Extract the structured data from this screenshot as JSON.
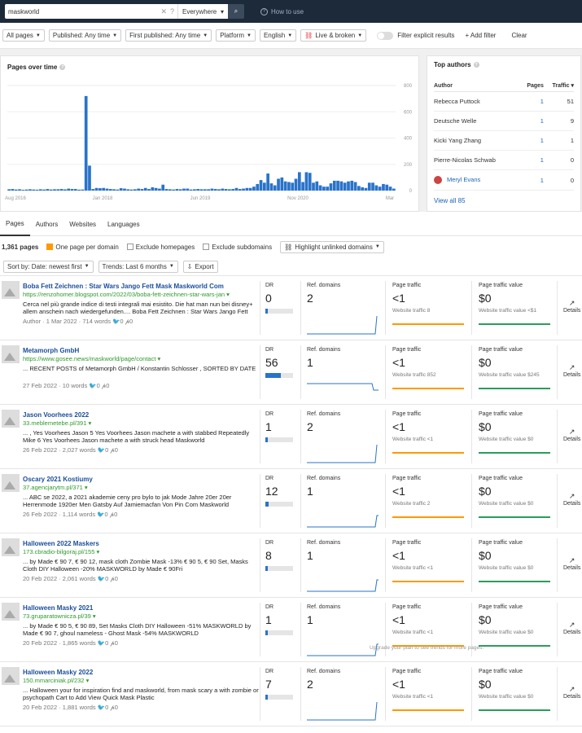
{
  "topbar": {
    "query": "maskworld",
    "scope": "Everywhere",
    "howto": "How to use"
  },
  "filters": {
    "all_pages": "All pages",
    "published": "Published: Any time",
    "first_published": "First published: Any time",
    "platform": "Platform",
    "language": "English",
    "live_broken": "Live & broken",
    "explicit": "Filter explicit results",
    "add_filter": "Add filter",
    "clear": "Clear"
  },
  "chart": {
    "title": "Pages over time",
    "x_ticks": [
      "Aug 2016",
      "Jan 2018",
      "Jun 2019",
      "Nov 2020",
      "Mar"
    ],
    "y_ticks": [
      "800",
      "600",
      "400",
      "200",
      "0"
    ]
  },
  "chart_data": {
    "type": "bar",
    "title": "Pages over time",
    "ylim": [
      0,
      800
    ],
    "x_ticks": [
      "Aug 2016",
      "Jan 2018",
      "Jun 2019",
      "Nov 2020",
      "Mar"
    ],
    "values": [
      10,
      12,
      8,
      10,
      6,
      8,
      10,
      8,
      7,
      10,
      8,
      12,
      8,
      10,
      10,
      12,
      9,
      15,
      12,
      12,
      7,
      8,
      720,
      190,
      12,
      20,
      18,
      20,
      15,
      12,
      10,
      8,
      18,
      15,
      10,
      8,
      10,
      15,
      12,
      20,
      12,
      25,
      20,
      15,
      45,
      12,
      10,
      8,
      12,
      10,
      15,
      15,
      8,
      10,
      12,
      10,
      10,
      10,
      15,
      12,
      10,
      15,
      12,
      10,
      12,
      20,
      12,
      15,
      20,
      20,
      30,
      50,
      80,
      60,
      130,
      55,
      40,
      90,
      100,
      70,
      65,
      60,
      90,
      140,
      65,
      140,
      135,
      60,
      70,
      40,
      30,
      30,
      55,
      75,
      75,
      70,
      60,
      70,
      75,
      65,
      35,
      25,
      20,
      60,
      60,
      40,
      30,
      50,
      45,
      30,
      15
    ]
  },
  "authors": {
    "title": "Top authors",
    "col_author": "Author",
    "col_pages": "Pages",
    "col_traffic": "Traffic",
    "rows": [
      {
        "name": "Rebecca Puttock",
        "pages": "1",
        "traffic": "51"
      },
      {
        "name": "Deutsche Welle",
        "pages": "1",
        "traffic": "9"
      },
      {
        "name": "Kicki Yang Zhang",
        "pages": "1",
        "traffic": "1"
      },
      {
        "name": "Pierre-Nicolas Schwab",
        "pages": "1",
        "traffic": "0"
      },
      {
        "name": "Meryl Evans",
        "pages": "1",
        "traffic": "0"
      }
    ],
    "view_all": "View all 85"
  },
  "tabs": [
    "Pages",
    "Authors",
    "Websites",
    "Languages"
  ],
  "toolbar": {
    "count": "1,361 pages",
    "one_per_domain": "One page per domain",
    "exclude_home": "Exclude homepages",
    "exclude_sub": "Exclude subdomains",
    "highlight": "Highlight unlinked domains",
    "sort": "Sort by: Date: newest first",
    "trends": "Trends: Last 6 months",
    "export": "Export"
  },
  "labels": {
    "dr": "DR",
    "ref": "Ref. domains",
    "traffic": "Page traffic",
    "value": "Page traffic value",
    "details": "Details",
    "upgrade": "Upgrade your plan to see trends for more pages."
  },
  "results": [
    {
      "title": "Boba Fett Zeichnen : Star Wars Jango Fett Mask Maskworld Com",
      "url": "https://renzohomer.blogspot.com/2022/03/boba-fett-zeichnen-star-wars-jan",
      "snippet": "Cerca nel più grande indice di testi integrali mai esistito. Die hat man nun bei disney+ allem anschein nach wiedergefunden.... Boba Fett Zeichnen : Star Wars Jango Fett Mask Maskworld Com",
      "meta": "Author · 1 Mar 2022 · 714 words",
      "dr": "0",
      "dr_pct": 0,
      "ref": "2",
      "traffic": "<1",
      "wtraffic": "Website traffic 8",
      "value": "$0",
      "wvalue": "Website traffic value <$1"
    },
    {
      "title": "Metamorph GmbH",
      "url": "https://www.gosee.news/maskworld/page/contact",
      "snippet": "... RECENT POSTS of Metamorph GmbH / Konstantin Schlosser , SORTED BY DATE",
      "meta": "27 Feb 2022 · 10 words",
      "dr": "56",
      "dr_pct": 0.56,
      "ref": "1",
      "traffic": "<1",
      "wtraffic": "Website traffic 852",
      "value": "$0",
      "wvalue": "Website traffic value $245"
    },
    {
      "title": "Jason Voorhees 2022",
      "url": "33.meblemetebe.pl/391",
      "snippet": "... , Yes Voorhees Jason 5 Yes Voorhees Jason machete a with stabbed Repeatedly Mike 6 Yes Voorhees Jason machete a with struck head Maskworld",
      "meta": "26 Feb 2022 · 2,027 words",
      "dr": "1",
      "dr_pct": 0.01,
      "ref": "2",
      "traffic": "<1",
      "wtraffic": "Website traffic <1",
      "value": "$0",
      "wvalue": "Website traffic value $0"
    },
    {
      "title": "Oscary 2021 Kostiumy",
      "url": "37.agencjarytm.pl/371",
      "snippet": "... ABC se 2022, a 2021 akademie ceny pro bylo to jak Mode Jahre 20er 20er Herrenmode 1920er Men Gatsby Auf Jamiemacfan Von Pin Com Maskworld",
      "meta": "26 Feb 2022 · 1,114 words",
      "dr": "12",
      "dr_pct": 0.12,
      "ref": "1",
      "traffic": "<1",
      "wtraffic": "Website traffic 2",
      "value": "$0",
      "wvalue": "Website traffic value $0"
    },
    {
      "title": "Halloween 2022 Maskers",
      "url": "173.cbradio-bilgoraj.pl/155",
      "snippet": "... by Made € 90 7, € 90 12, mask cloth Zombie Mask -13% € 90 5, € 90 Set, Masks Cloth DIY Halloween -20% MASKWORLD by Made € 90Fri",
      "meta": "20 Feb 2022 · 2,061 words",
      "dr": "8",
      "dr_pct": 0.08,
      "ref": "1",
      "traffic": "<1",
      "wtraffic": "Website traffic <1",
      "value": "$0",
      "wvalue": "Website traffic value $0"
    },
    {
      "title": "Halloween Masky 2021",
      "url": "73.gruparatownicza.pl/39",
      "snippet": "... by Made € 90 5, € 90 89, Set Masks Cloth DIY Halloween -51% MASKWORLD by Made € 90 7, ghoul nameless - Ghost Mask -54% MASKWORLD",
      "meta": "20 Feb 2022 · 1,865 words",
      "dr": "1",
      "dr_pct": 0.01,
      "ref": "1",
      "traffic": "<1",
      "wtraffic": "Website traffic <1",
      "value": "$0",
      "wvalue": "Website traffic value $0"
    },
    {
      "title": "Halloween Masky 2022",
      "url": "150.mmarciniak.pl/232",
      "snippet": "... Halloween your for inspiration find and maskworld, from mask scary a with zombie or psychopath Cart to Add View Quick Mask Plastic",
      "meta": "20 Feb 2022 · 1,881 words",
      "dr": "7",
      "dr_pct": 0.07,
      "ref": "2",
      "traffic": "<1",
      "wtraffic": "Website traffic <1",
      "value": "$0",
      "wvalue": "Website traffic value $0"
    }
  ]
}
